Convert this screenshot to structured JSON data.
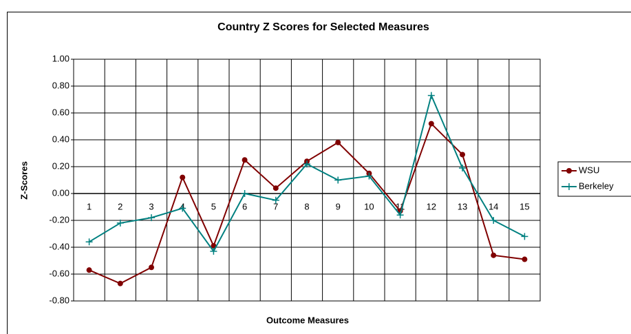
{
  "chart_data": {
    "type": "line",
    "title": "Country Z Scores for Selected  Measures",
    "x_label": "Outcome Measures",
    "y_label": "Z-Scores",
    "categories": [
      "1",
      "2",
      "3",
      "4",
      "5",
      "6",
      "7",
      "8",
      "9",
      "10",
      "11",
      "12",
      "13",
      "14",
      "15"
    ],
    "series": [
      {
        "name": "WSU",
        "color": "#800000",
        "marker": "circle",
        "values": [
          -0.57,
          -0.67,
          -0.55,
          0.12,
          -0.39,
          0.25,
          0.04,
          0.24,
          0.38,
          0.15,
          -0.13,
          0.52,
          0.29,
          -0.46,
          -0.49
        ]
      },
      {
        "name": "Berkeley",
        "color": "#008080",
        "marker": "plus",
        "values": [
          -0.36,
          -0.22,
          -0.18,
          -0.11,
          -0.43,
          0.0,
          -0.05,
          0.22,
          0.1,
          0.13,
          -0.16,
          0.73,
          0.19,
          -0.2,
          -0.32
        ]
      }
    ],
    "ylim": [
      -0.8,
      1.0
    ],
    "yticks": [
      {
        "value": -0.8,
        "label": "-0.80"
      },
      {
        "value": -0.6,
        "label": "-0.60"
      },
      {
        "value": -0.4,
        "label": "-0.40"
      },
      {
        "value": -0.2,
        "label": "-0.20"
      },
      {
        "value": 0,
        "label": "0.00"
      },
      {
        "value": 0.2,
        "label": "0.20"
      },
      {
        "value": 0.4,
        "label": "0.40"
      },
      {
        "value": 0.6,
        "label": "0.60"
      },
      {
        "value": 0.8,
        "label": "0.80"
      },
      {
        "value": 1.0,
        "label": "1.00"
      }
    ],
    "grid": true,
    "legend": "right"
  }
}
